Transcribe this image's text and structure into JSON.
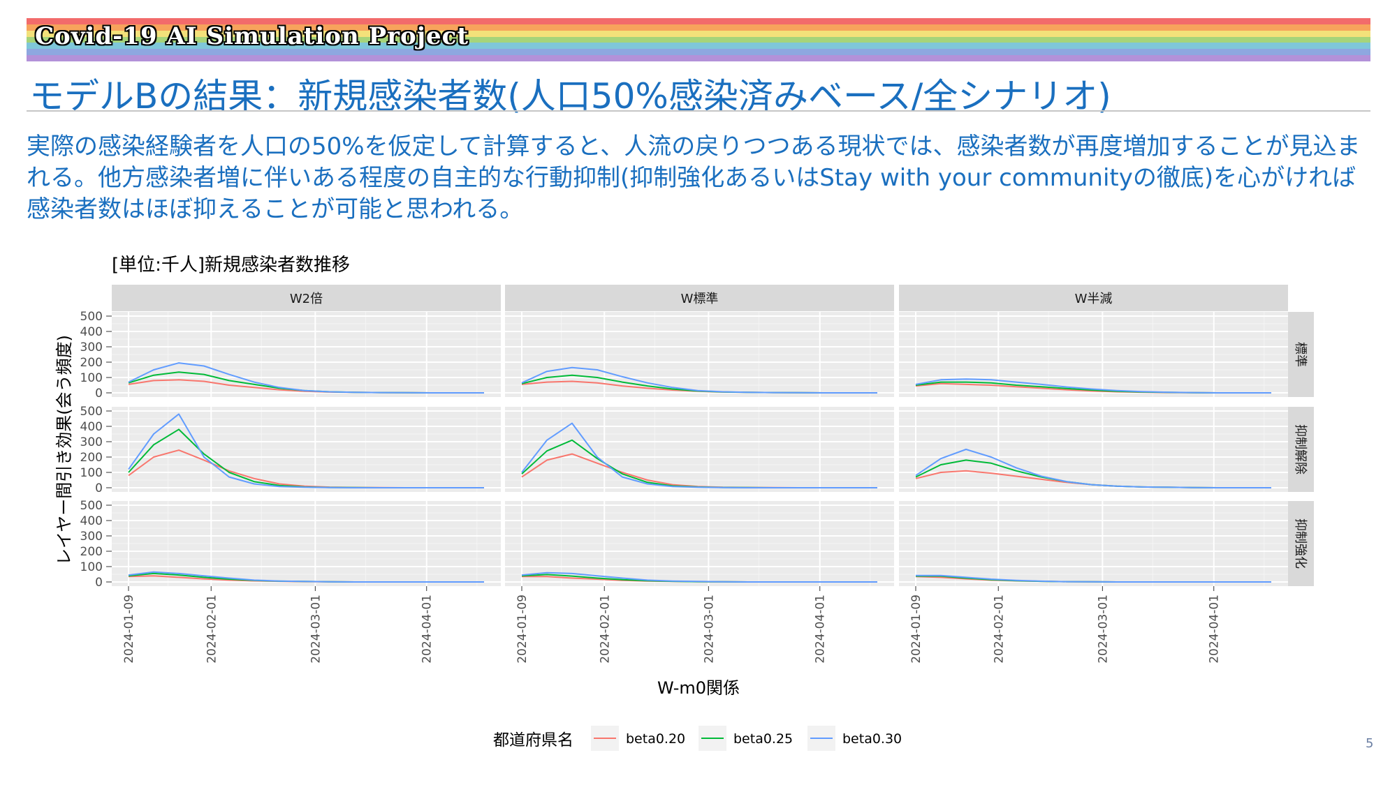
{
  "banner": {
    "title": "Covid-19 AI Simulation Project",
    "stripe_colors": [
      "#f26b6b",
      "#f7a35c",
      "#f3e17a",
      "#a6d47a",
      "#7fc7d9",
      "#8ea7e0",
      "#b391d9"
    ]
  },
  "slide": {
    "title": "モデルBの結果：新規感染者数(人口50%感染済みベース/全シナリオ)",
    "body": "実際の感染経験者を人口の50%を仮定して計算すると、人流の戻りつつある現状では、感染者数が再度増加することが見込まれる。他方感染者増に伴いある程度の自主的な行動抑制(抑制強化あるいはStay with your communityの徹底)を心がければ感染者数はほぼ抑えることが可能と思われる。",
    "page_number": "5"
  },
  "colors": {
    "title_text": "#1a6fbf",
    "panel_bg": "#ebebeb",
    "strip_bg": "#d9d9d9",
    "grid": "#ffffff"
  },
  "chart_data": {
    "type": "line",
    "title": "[単位:千人]新規感染者数推移",
    "xlabel": "W-m0関係",
    "ylabel": "レイヤー間引き効果(会う頻度)",
    "x_start": "2024-01-09",
    "x_end": "2024-04-17",
    "x_ticks": [
      "2024-01-09",
      "2024-02-01",
      "2024-03-01",
      "2024-04-01"
    ],
    "ylim": [
      0,
      500
    ],
    "y_ticks": [
      0,
      100,
      200,
      300,
      400,
      500
    ],
    "grid": true,
    "facet_columns": [
      "W2倍",
      "W標準",
      "W半減"
    ],
    "facet_rows": [
      "標準",
      "抑制解除",
      "抑制強化"
    ],
    "legend": {
      "title": "都道府県名",
      "position": "bottom",
      "entries": [
        {
          "name": "beta0.20",
          "color": "#f8766d"
        },
        {
          "name": "beta0.25",
          "color": "#00ba38"
        },
        {
          "name": "beta0.30",
          "color": "#619cff"
        }
      ]
    },
    "week_dates": [
      "2024-01-09",
      "2024-01-16",
      "2024-01-23",
      "2024-01-30",
      "2024-02-06",
      "2024-02-13",
      "2024-02-20",
      "2024-02-27",
      "2024-03-05",
      "2024-03-12",
      "2024-03-19",
      "2024-03-26",
      "2024-04-02",
      "2024-04-09",
      "2024-04-17"
    ],
    "panels": [
      {
        "col": "W2倍",
        "row": "標準",
        "series": [
          {
            "name": "beta0.20",
            "values": [
              55,
              80,
              85,
              75,
              50,
              35,
              20,
              10,
              5,
              3,
              2,
              1,
              0,
              0,
              0
            ]
          },
          {
            "name": "beta0.25",
            "values": [
              65,
              115,
              135,
              120,
              80,
              55,
              30,
              15,
              7,
              3,
              2,
              1,
              0,
              0,
              0
            ]
          },
          {
            "name": "beta0.30",
            "values": [
              70,
              150,
              195,
              175,
              120,
              70,
              35,
              15,
              7,
              3,
              2,
              1,
              0,
              0,
              0
            ]
          }
        ]
      },
      {
        "col": "W標準",
        "row": "標準",
        "series": [
          {
            "name": "beta0.20",
            "values": [
              55,
              70,
              75,
              65,
              45,
              30,
              18,
              10,
              5,
              3,
              2,
              1,
              0,
              0,
              0
            ]
          },
          {
            "name": "beta0.25",
            "values": [
              60,
              100,
              115,
              100,
              70,
              45,
              25,
              12,
              6,
              3,
              2,
              1,
              0,
              0,
              0
            ]
          },
          {
            "name": "beta0.30",
            "values": [
              65,
              140,
              165,
              150,
              105,
              65,
              35,
              15,
              7,
              3,
              2,
              1,
              0,
              0,
              0
            ]
          }
        ]
      },
      {
        "col": "W半減",
        "row": "標準",
        "series": [
          {
            "name": "beta0.20",
            "values": [
              45,
              60,
              55,
              50,
              40,
              30,
              20,
              12,
              7,
              4,
              2,
              1,
              0,
              0,
              0
            ]
          },
          {
            "name": "beta0.25",
            "values": [
              50,
              70,
              70,
              65,
              50,
              40,
              28,
              18,
              10,
              6,
              3,
              1,
              0,
              0,
              0
            ]
          },
          {
            "name": "beta0.30",
            "values": [
              55,
              85,
              90,
              85,
              70,
              55,
              38,
              25,
              15,
              8,
              4,
              2,
              0,
              0,
              0
            ]
          }
        ]
      },
      {
        "col": "W2倍",
        "row": "抑制解除",
        "series": [
          {
            "name": "beta0.20",
            "values": [
              80,
              200,
              245,
              180,
              110,
              60,
              25,
              10,
              4,
              2,
              1,
              0,
              0,
              0,
              0
            ]
          },
          {
            "name": "beta0.25",
            "values": [
              100,
              280,
              380,
              220,
              100,
              40,
              15,
              5,
              2,
              1,
              0,
              0,
              0,
              0,
              0
            ]
          },
          {
            "name": "beta0.30",
            "values": [
              120,
              350,
              480,
              200,
              70,
              25,
              8,
              3,
              1,
              0,
              0,
              0,
              0,
              0,
              0
            ]
          }
        ]
      },
      {
        "col": "W標準",
        "row": "抑制解除",
        "series": [
          {
            "name": "beta0.20",
            "values": [
              70,
              180,
              220,
              160,
              100,
              50,
              20,
              8,
              3,
              2,
              1,
              0,
              0,
              0,
              0
            ]
          },
          {
            "name": "beta0.25",
            "values": [
              90,
              240,
              310,
              190,
              90,
              35,
              12,
              5,
              2,
              1,
              0,
              0,
              0,
              0,
              0
            ]
          },
          {
            "name": "beta0.30",
            "values": [
              100,
              310,
              420,
              200,
              70,
              25,
              8,
              3,
              1,
              0,
              0,
              0,
              0,
              0,
              0
            ]
          }
        ]
      },
      {
        "col": "W半減",
        "row": "抑制解除",
        "series": [
          {
            "name": "beta0.20",
            "values": [
              60,
              100,
              110,
              95,
              75,
              55,
              35,
              20,
              10,
              5,
              3,
              1,
              0,
              0,
              0
            ]
          },
          {
            "name": "beta0.25",
            "values": [
              70,
              150,
              180,
              160,
              110,
              70,
              40,
              20,
              10,
              5,
              3,
              1,
              0,
              0,
              0
            ]
          },
          {
            "name": "beta0.30",
            "values": [
              80,
              190,
              250,
              200,
              130,
              75,
              40,
              20,
              10,
              5,
              3,
              1,
              0,
              0,
              0
            ]
          }
        ]
      },
      {
        "col": "W2倍",
        "row": "抑制強化",
        "series": [
          {
            "name": "beta0.20",
            "values": [
              35,
              40,
              30,
              20,
              12,
              7,
              4,
              2,
              1,
              0,
              0,
              0,
              0,
              0,
              0
            ]
          },
          {
            "name": "beta0.25",
            "values": [
              40,
              55,
              45,
              30,
              18,
              10,
              5,
              3,
              1,
              0,
              0,
              0,
              0,
              0,
              0
            ]
          },
          {
            "name": "beta0.30",
            "values": [
              45,
              65,
              55,
              40,
              25,
              12,
              6,
              3,
              1,
              0,
              0,
              0,
              0,
              0,
              0
            ]
          }
        ]
      },
      {
        "col": "W標準",
        "row": "抑制強化",
        "series": [
          {
            "name": "beta0.20",
            "values": [
              35,
              35,
              25,
              18,
              10,
              6,
              3,
              2,
              1,
              0,
              0,
              0,
              0,
              0,
              0
            ]
          },
          {
            "name": "beta0.25",
            "values": [
              40,
              48,
              38,
              25,
              15,
              8,
              4,
              2,
              1,
              0,
              0,
              0,
              0,
              0,
              0
            ]
          },
          {
            "name": "beta0.30",
            "values": [
              45,
              60,
              55,
              40,
              25,
              12,
              6,
              3,
              1,
              0,
              0,
              0,
              0,
              0,
              0
            ]
          }
        ]
      },
      {
        "col": "W半減",
        "row": "抑制強化",
        "series": [
          {
            "name": "beta0.20",
            "values": [
              35,
              30,
              20,
              12,
              7,
              4,
              2,
              1,
              0,
              0,
              0,
              0,
              0,
              0,
              0
            ]
          },
          {
            "name": "beta0.25",
            "values": [
              38,
              38,
              25,
              15,
              8,
              4,
              2,
              1,
              0,
              0,
              0,
              0,
              0,
              0,
              0
            ]
          },
          {
            "name": "beta0.30",
            "values": [
              42,
              42,
              30,
              18,
              10,
              5,
              2,
              1,
              0,
              0,
              0,
              0,
              0,
              0,
              0
            ]
          }
        ]
      }
    ]
  }
}
